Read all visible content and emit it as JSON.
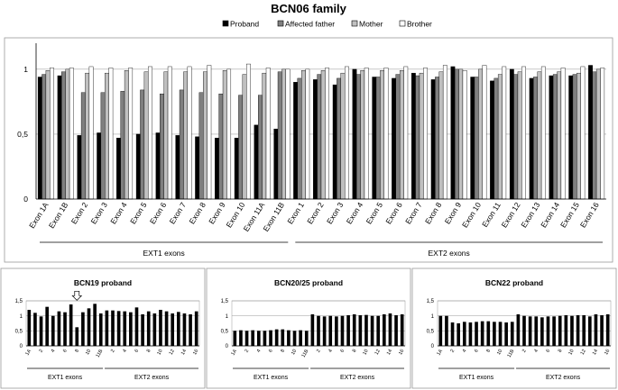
{
  "chart_data": [
    {
      "type": "bar",
      "title": "BCN06 family",
      "ylim": [
        0,
        1.2
      ],
      "yticks": [
        "0",
        "0,5",
        "1"
      ],
      "ytick_values": [
        0,
        0.5,
        1
      ],
      "grid": true,
      "legend_position": "top",
      "categories": [
        "Exon 1A",
        "Exon 1B",
        "Exon 2",
        "Exon 3",
        "Exon 4",
        "Exon 5",
        "Exon 6",
        "Exon 7",
        "Exon 8",
        "Exon 9",
        "Exon 10",
        "Exon 11A",
        "Exon 11B",
        "Exon 1",
        "Exon 2",
        "Exon 3",
        "Exon 4",
        "Exon 5",
        "Exon 6",
        "Exon 7",
        "Exon 8",
        "Exon 9",
        "Exon 10",
        "Exon 11",
        "Exon 12",
        "Exon 13",
        "Exon 14",
        "Exon 15",
        "Exon 16"
      ],
      "groups": [
        {
          "label": "EXT1 exons",
          "start": 0,
          "end": 12
        },
        {
          "label": "EXT2 exons",
          "start": 13,
          "end": 28
        }
      ],
      "series": [
        {
          "name": "Proband",
          "color": "#000000",
          "values": [
            0.94,
            0.95,
            0.49,
            0.51,
            0.47,
            0.5,
            0.51,
            0.49,
            0.48,
            0.47,
            0.47,
            0.57,
            0.54,
            0.9,
            0.92,
            0.88,
            1.0,
            0.94,
            0.93,
            0.97,
            0.92,
            1.02,
            0.94,
            0.91,
            1.0,
            0.93,
            0.95,
            0.95,
            1.03
          ]
        },
        {
          "name": "Affected father",
          "color": "#7f7f7f",
          "values": [
            0.96,
            0.98,
            0.82,
            0.82,
            0.83,
            0.84,
            0.81,
            0.84,
            0.82,
            0.81,
            0.8,
            0.8,
            0.98,
            0.93,
            0.96,
            0.93,
            0.96,
            0.94,
            0.96,
            0.95,
            0.94,
            1.0,
            0.94,
            0.93,
            0.96,
            0.94,
            0.96,
            0.96,
            0.98
          ]
        },
        {
          "name": "Mother",
          "color": "#c0c0c0",
          "values": [
            0.99,
            1.0,
            0.97,
            0.97,
            0.99,
            0.98,
            0.98,
            0.98,
            0.98,
            0.99,
            0.96,
            0.97,
            1.0,
            0.99,
            0.99,
            0.97,
            0.99,
            0.99,
            0.99,
            0.97,
            0.98,
            1.0,
            1.0,
            0.96,
            0.98,
            0.98,
            0.98,
            0.97,
            1.0
          ]
        },
        {
          "name": "Brother",
          "color": "#ffffff",
          "values": [
            1.01,
            1.01,
            1.02,
            1.01,
            1.01,
            1.02,
            1.02,
            1.02,
            1.03,
            1.0,
            1.04,
            1.01,
            1.0,
            1.0,
            1.01,
            1.02,
            1.01,
            1.01,
            1.02,
            1.01,
            1.03,
            0.99,
            1.03,
            1.02,
            1.02,
            1.02,
            1.01,
            1.02,
            1.01
          ]
        }
      ]
    },
    {
      "type": "bar",
      "title": "BCN19 proband",
      "ylim": [
        0,
        1.5
      ],
      "yticks": [
        "0",
        "0,5",
        "1",
        "1,5"
      ],
      "ytick_values": [
        0,
        0.5,
        1,
        1.5
      ],
      "grid": true,
      "categories": [
        "1A",
        "1B",
        "2",
        "3",
        "4",
        "5",
        "6",
        "7",
        "8",
        "9",
        "10",
        "11A",
        "11B",
        "1",
        "2",
        "3",
        "4",
        "5",
        "6",
        "7",
        "8",
        "9",
        "10",
        "11",
        "12",
        "13",
        "14",
        "15",
        "16"
      ],
      "xtick_labels": [
        "1A",
        "2",
        "4",
        "6",
        "8",
        "10",
        "11B",
        "2",
        "4",
        "6",
        "8",
        "10",
        "12",
        "14",
        "16"
      ],
      "xtick_indices": [
        0,
        2,
        4,
        6,
        8,
        10,
        12,
        14,
        16,
        18,
        20,
        22,
        24,
        26,
        28
      ],
      "groups": [
        {
          "label": "EXT1 exons",
          "start": 0,
          "end": 12
        },
        {
          "label": "EXT2 exons",
          "start": 13,
          "end": 28
        }
      ],
      "marker_icon": "arrow-down-icon",
      "marker_index": 8,
      "values": [
        1.2,
        1.1,
        0.98,
        1.3,
        1.0,
        1.15,
        1.12,
        1.38,
        0.62,
        1.12,
        1.25,
        1.4,
        1.08,
        1.18,
        1.18,
        1.16,
        1.15,
        1.12,
        1.28,
        1.05,
        1.15,
        1.08,
        1.2,
        1.15,
        1.08,
        1.13,
        1.08,
        1.05,
        1.15
      ]
    },
    {
      "type": "bar",
      "title": "BCN20/25 proband",
      "ylim": [
        0,
        1.5
      ],
      "yticks": [
        "0",
        "0,5",
        "1",
        "1,5"
      ],
      "ytick_values": [
        0,
        0.5,
        1,
        1.5
      ],
      "grid": true,
      "categories": [
        "1A",
        "1B",
        "2",
        "3",
        "4",
        "5",
        "6",
        "7",
        "8",
        "9",
        "10",
        "11A",
        "11B",
        "1",
        "2",
        "3",
        "4",
        "5",
        "6",
        "7",
        "8",
        "9",
        "10",
        "11",
        "12",
        "13",
        "14",
        "15",
        "16"
      ],
      "xtick_labels": [
        "1A",
        "2",
        "4",
        "6",
        "8",
        "10",
        "11B",
        "2",
        "4",
        "6",
        "8",
        "10",
        "12",
        "14",
        "16"
      ],
      "xtick_indices": [
        0,
        2,
        4,
        6,
        8,
        10,
        12,
        14,
        16,
        18,
        20,
        22,
        24,
        26,
        28
      ],
      "groups": [
        {
          "label": "EXT1 exons",
          "start": 0,
          "end": 12
        },
        {
          "label": "EXT2 exons",
          "start": 13,
          "end": 28
        }
      ],
      "values": [
        0.5,
        0.52,
        0.5,
        0.52,
        0.5,
        0.5,
        0.52,
        0.55,
        0.55,
        0.52,
        0.5,
        0.52,
        0.5,
        1.05,
        1.0,
        0.98,
        1.0,
        0.98,
        1.0,
        1.02,
        1.05,
        1.02,
        1.03,
        1.0,
        1.0,
        1.05,
        1.08,
        1.02,
        1.05
      ]
    },
    {
      "type": "bar",
      "title": "BCN22 proband",
      "ylim": [
        0,
        1.5
      ],
      "yticks": [
        "0",
        "0,5",
        "1",
        "1,5"
      ],
      "ytick_values": [
        0,
        0.5,
        1,
        1.5
      ],
      "grid": true,
      "categories": [
        "1A",
        "1B",
        "2",
        "3",
        "4",
        "5",
        "6",
        "7",
        "8",
        "9",
        "10",
        "11A",
        "11B",
        "1",
        "2",
        "3",
        "4",
        "5",
        "6",
        "7",
        "8",
        "9",
        "10",
        "11",
        "12",
        "13",
        "14",
        "15",
        "16"
      ],
      "xtick_labels": [
        "1A",
        "2",
        "4",
        "6",
        "8",
        "10",
        "11B",
        "2",
        "4",
        "6",
        "8",
        "10",
        "12",
        "14",
        "16"
      ],
      "xtick_indices": [
        0,
        2,
        4,
        6,
        8,
        10,
        12,
        14,
        16,
        18,
        20,
        22,
        24,
        26,
        28
      ],
      "groups": [
        {
          "label": "EXT1 exons",
          "start": 0,
          "end": 12
        },
        {
          "label": "EXT2 exons",
          "start": 13,
          "end": 28
        }
      ],
      "values": [
        1.0,
        1.0,
        0.78,
        0.75,
        0.8,
        0.78,
        0.8,
        0.82,
        0.82,
        0.8,
        0.8,
        0.78,
        0.8,
        1.05,
        1.0,
        0.98,
        0.98,
        0.95,
        0.98,
        0.98,
        1.0,
        1.02,
        1.0,
        1.02,
        1.02,
        0.98,
        1.05,
        1.02,
        1.05
      ]
    }
  ]
}
